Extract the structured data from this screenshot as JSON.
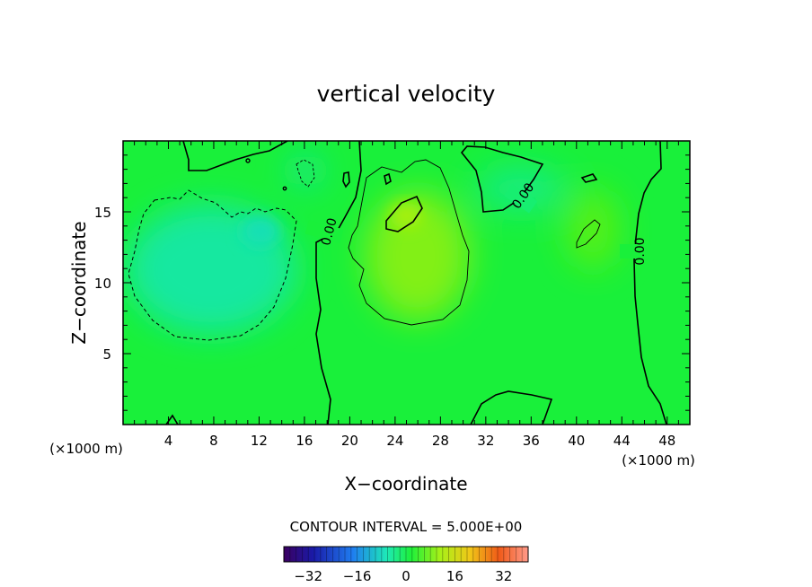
{
  "chart_data": {
    "type": "contour",
    "title": "vertical velocity",
    "xlabel": "X−coordinate",
    "ylabel": "Z−coordinate",
    "x_unit_left": "(×1000 m)",
    "x_unit_right": "(×1000 m)",
    "xlim": [
      0,
      50
    ],
    "ylim": [
      0,
      20
    ],
    "x_ticks": [
      "4",
      "8",
      "12",
      "16",
      "20",
      "24",
      "28",
      "32",
      "36",
      "40",
      "44",
      "48"
    ],
    "y_ticks": [
      "5",
      "10",
      "15"
    ],
    "contour_interval_text": "CONTOUR INTERVAL = 5.000E+00",
    "contour_label": "0.00",
    "colorbar": {
      "min": -40,
      "max": 40,
      "ticks": [
        "−32",
        "−16",
        "0",
        "16",
        "32"
      ]
    },
    "field": {
      "background_value": 1.5,
      "features": [
        {
          "name": "downdraft-left",
          "x": 9,
          "z": 11,
          "peak": -6
        },
        {
          "name": "updraft-center",
          "x": 25,
          "z": 12.5,
          "peak": 10
        },
        {
          "name": "updraft-core",
          "x": 25.5,
          "z": 15,
          "peak": 13
        },
        {
          "name": "weak-down-top-right",
          "x": 35,
          "z": 16.5,
          "peak": -3
        },
        {
          "name": "weak-up-right",
          "x": 41,
          "z": 13,
          "peak": 8
        }
      ]
    }
  },
  "colors": {
    "field_background": "#19f03a",
    "downdraft": "#16e89e",
    "updraft": "#7ef012",
    "contour_line": "#000000"
  }
}
